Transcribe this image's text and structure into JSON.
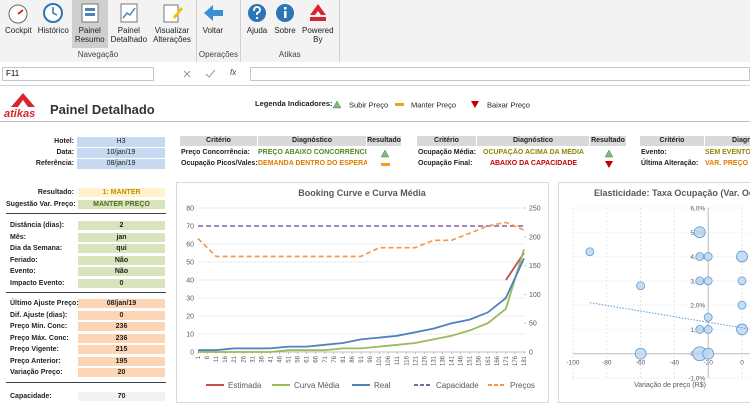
{
  "ribbon": {
    "groups": [
      {
        "name": "Navegação",
        "buttons": [
          "Cockpit",
          "Histórico",
          "Painel Resumo",
          "Painel Detalhado",
          "Visualizar Alterações"
        ]
      },
      {
        "name": "Operações",
        "buttons": [
          "Voltar"
        ]
      },
      {
        "name": "Atikas",
        "buttons": [
          "Ajuda",
          "Sobre",
          "Powered By"
        ]
      }
    ]
  },
  "formula_bar": {
    "name_box": "F11",
    "fx": "fx"
  },
  "header": {
    "logo": "atikas",
    "title": "Painel Detalhado",
    "legend_title": "Legenda Indicadores:",
    "legend": [
      {
        "label": "Subir Preço",
        "icon": "up"
      },
      {
        "label": "Manter Preço",
        "icon": "equal"
      },
      {
        "label": "Baixar Preço",
        "icon": "down"
      }
    ]
  },
  "info": [
    {
      "label": "Hotel:",
      "value": "H3"
    },
    {
      "label": "Data:",
      "value": "10/jan/19"
    },
    {
      "label": "Referência:",
      "value": "08/jan/19"
    }
  ],
  "indicator_tables": [
    {
      "headers": [
        "Critério",
        "Diagnóstico",
        "Resultado"
      ],
      "rows": [
        {
          "criterion": "Preço Concorrência:",
          "diagnosis": "PREÇO ABAIXO CONCORRÊNCIA",
          "color": "#4e8a1e",
          "result": "up"
        },
        {
          "criterion": "Ocupação Picos/Vales:",
          "diagnosis": "DEMANDA DENTRO DO ESPERADO",
          "color": "#e07b00",
          "result": "equal"
        }
      ]
    },
    {
      "headers": [
        "Critério",
        "Diagnóstico",
        "Resultado"
      ],
      "rows": [
        {
          "criterion": "Ocupação Média:",
          "diagnosis": "OCUPAÇÃO ACIMA DA MÉDIA",
          "color": "#8a8a00",
          "result": "up"
        },
        {
          "criterion": "Ocupação Final:",
          "diagnosis": "ABAIXO DA CAPACIDADE",
          "color": "#c00000",
          "result": "down"
        }
      ]
    },
    {
      "headers": [
        "Critério",
        "Diagnóstico"
      ],
      "rows": [
        {
          "criterion": "Evento:",
          "diagnosis": "SEM EVENTO R",
          "color": "#8a8a00"
        },
        {
          "criterion": "Última Alteração:",
          "diagnosis": "VAR. PREÇO IR",
          "color": "#e07b00"
        }
      ]
    }
  ],
  "left_panel": {
    "groups": [
      [
        {
          "label": "Resultado:",
          "value": "1: MANTER"
        },
        {
          "label": "Sugestão Var. Preço:",
          "value": "MANTER PREÇO"
        }
      ],
      [
        {
          "label": "Distância (dias):",
          "value": "2"
        },
        {
          "label": "Mês:",
          "value": "jan"
        },
        {
          "label": "Dia da Semana:",
          "value": "qui"
        },
        {
          "label": "Feriado:",
          "value": "Não"
        },
        {
          "label": "Evento:",
          "value": "Não"
        },
        {
          "label": "Impacto Evento:",
          "value": "0"
        }
      ],
      [
        {
          "label": "Último Ajuste Preço:",
          "value": "08/jan/19"
        },
        {
          "label": "Dif. Ajuste (dias):",
          "value": "0"
        },
        {
          "label": "Preço Mín. Conc:",
          "value": "236"
        },
        {
          "label": "Preço Máx. Conc:",
          "value": "236"
        },
        {
          "label": "Preço Vigente:",
          "value": "215"
        },
        {
          "label": "Preço Anterior:",
          "value": "195"
        },
        {
          "label": "Variação Preço:",
          "value": "20"
        }
      ],
      [
        {
          "label": "Capacidade:",
          "value": "70"
        }
      ]
    ]
  },
  "chart_data": [
    {
      "type": "line",
      "title": "Booking Curve e Curva Média",
      "x": [
        1,
        11,
        21,
        31,
        41,
        51,
        61,
        71,
        81,
        91,
        101,
        111,
        121,
        131,
        141,
        151,
        161,
        171,
        181
      ],
      "xlim": [
        1,
        181
      ],
      "xticks": [
        1,
        6,
        11,
        16,
        21,
        26,
        31,
        36,
        41,
        46,
        51,
        56,
        61,
        66,
        71,
        76,
        81,
        86,
        91,
        96,
        101,
        106,
        111,
        116,
        121,
        126,
        131,
        136,
        141,
        146,
        151,
        156,
        161,
        166,
        171,
        176,
        181
      ],
      "ylim": [
        0,
        80
      ],
      "yticks": [
        0,
        10,
        20,
        30,
        40,
        50,
        60,
        70,
        80
      ],
      "y2lim": [
        0,
        250
      ],
      "y2ticks": [
        0,
        50,
        100,
        150,
        200,
        250
      ],
      "grid": true,
      "series": [
        {
          "name": "Estimada",
          "color": "#c0504d",
          "dash": false,
          "values": [
            null,
            null,
            null,
            null,
            null,
            null,
            null,
            null,
            null,
            null,
            null,
            null,
            null,
            null,
            null,
            null,
            null,
            40,
            55
          ]
        },
        {
          "name": "Curva Média",
          "color": "#9bbb59",
          "dash": false,
          "values": [
            0,
            0,
            0,
            0,
            0,
            1,
            1,
            1,
            2,
            2,
            3,
            4,
            5,
            7,
            9,
            12,
            16,
            24,
            57
          ]
        },
        {
          "name": "Real",
          "color": "#4f81bd",
          "dash": false,
          "values": [
            1,
            1,
            2,
            2,
            2,
            3,
            3,
            4,
            5,
            7,
            8,
            9,
            11,
            13,
            16,
            18,
            22,
            30,
            52
          ]
        },
        {
          "name": "Capacidade",
          "color": "#8064a2",
          "dash": true,
          "values": [
            70,
            70,
            70,
            70,
            70,
            70,
            70,
            70,
            70,
            70,
            70,
            70,
            70,
            70,
            70,
            70,
            70,
            70,
            70
          ]
        },
        {
          "name": "Preços",
          "color": "#f79646",
          "dash": true,
          "axis": "y2",
          "values": [
            197,
            166,
            166,
            166,
            166,
            166,
            166,
            166,
            166,
            166,
            181,
            181,
            181,
            194,
            194,
            206,
            219,
            225,
            212
          ]
        }
      ]
    },
    {
      "type": "scatter",
      "title": "Elasticidade: Taxa Ocupação (Var. Oc",
      "x_label": "Variação de preço (R$)",
      "xlim": [
        -100,
        20
      ],
      "xticks": [
        -100,
        -80,
        -60,
        -40,
        -20,
        0
      ],
      "ylim": [
        -1,
        6
      ],
      "yticks": [
        {
          "value": 6,
          "label": "6,0%"
        },
        {
          "value": 5,
          "label": "5,0%"
        },
        {
          "value": 4,
          "label": "4,0%"
        },
        {
          "value": 3,
          "label": "3,0%"
        },
        {
          "value": 2,
          "label": "2,0%"
        },
        {
          "value": 1,
          "label": "1,0%"
        },
        {
          "value": 0,
          "label": "0,0%"
        },
        {
          "value": -1,
          "label": "-1,0%"
        }
      ],
      "y_axis_crosses": -20,
      "x_axis_crosses": 0,
      "grid": true,
      "series": [
        {
          "color": "#5b9bd5",
          "x": [
            -90,
            -60,
            -60,
            -25,
            -25,
            -25,
            -25,
            -25,
            -20,
            -20,
            -20,
            -20,
            -20,
            0,
            0,
            0,
            0
          ],
          "values": [
            4.2,
            2.8,
            0,
            5,
            4,
            3,
            1,
            0,
            4,
            3,
            1.5,
            1,
            0,
            4,
            3,
            2,
            1
          ],
          "sizes": [
            1,
            1,
            2,
            2,
            1,
            1,
            1,
            3,
            1,
            1,
            1,
            1,
            2,
            2,
            1,
            1,
            2
          ]
        }
      ],
      "trendline": {
        "color": "#5b9bd5",
        "x": [
          -90,
          10
        ],
        "values": [
          2.1,
          0.95
        ]
      }
    }
  ]
}
